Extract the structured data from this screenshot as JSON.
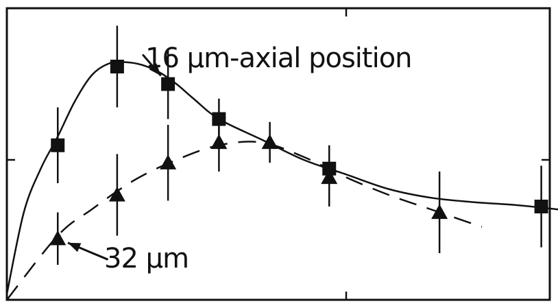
{
  "chart_data": {
    "type": "scatter",
    "title": "",
    "xlabel": "",
    "ylabel": "",
    "xlim": [
      0,
      6.4
    ],
    "ylim": [
      0,
      1.0
    ],
    "x_ticks": [
      0,
      4,
      6.4
    ],
    "y_ticks": [
      0.48
    ],
    "grid": false,
    "series": [
      {
        "name": "16 µm-axial position",
        "marker": "square",
        "line": "solid",
        "x": [
          0.6,
          1.3,
          1.9,
          2.5,
          3.8,
          6.3
        ],
        "y": [
          0.53,
          0.8,
          0.74,
          0.62,
          0.45,
          0.32
        ],
        "err": [
          0.13,
          0.14,
          0.12,
          0.07,
          0.08,
          0.14
        ],
        "fit": {
          "x": [
            0,
            0.2,
            0.4,
            0.6,
            0.8,
            1.0,
            1.2,
            1.4,
            1.6,
            1.8,
            2.0,
            2.2,
            2.5,
            3.0,
            3.5,
            4.0,
            4.5,
            5.0,
            5.5,
            6.0,
            6.5
          ],
          "y": [
            0.02,
            0.3,
            0.45,
            0.56,
            0.68,
            0.77,
            0.81,
            0.815,
            0.805,
            0.78,
            0.74,
            0.69,
            0.62,
            0.55,
            0.48,
            0.43,
            0.38,
            0.35,
            0.335,
            0.325,
            0.31
          ]
        }
      },
      {
        "name": "32 µm",
        "marker": "triangle",
        "line": "dashed",
        "x": [
          0.6,
          1.3,
          1.9,
          2.5,
          3.1,
          3.8,
          5.1
        ],
        "y": [
          0.21,
          0.36,
          0.47,
          0.54,
          0.54,
          0.42,
          0.3
        ],
        "err": [
          0.09,
          0.14,
          0.13,
          0.1,
          0.07,
          0.1,
          0.14
        ],
        "fit": {
          "x": [
            0,
            0.6,
            1.0,
            1.5,
            2.0,
            2.5,
            3.0,
            3.5,
            4.0,
            4.5,
            5.0,
            5.6
          ],
          "y": [
            0.0,
            0.22,
            0.31,
            0.41,
            0.48,
            0.53,
            0.54,
            0.49,
            0.42,
            0.36,
            0.31,
            0.25
          ]
        }
      }
    ],
    "annotations": [
      {
        "text": "16 µm-axial position",
        "target_series": 0,
        "target_point": 2
      },
      {
        "text": "32 µm",
        "target_series": 1,
        "target_point": 0
      }
    ]
  }
}
